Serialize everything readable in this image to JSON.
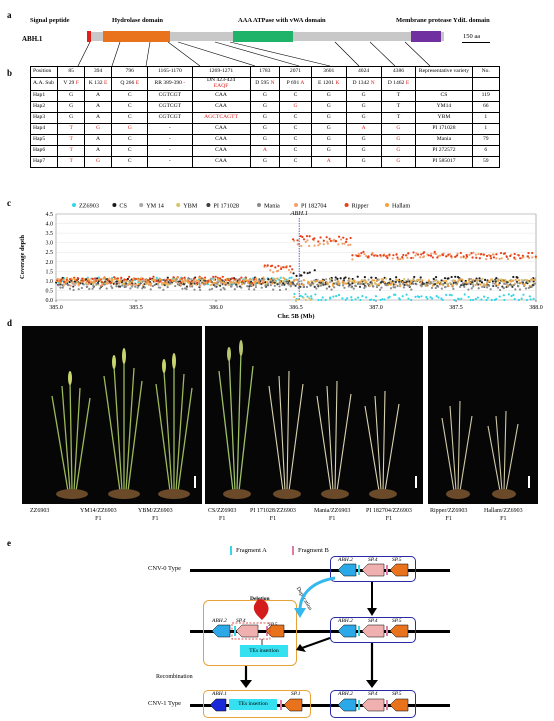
{
  "panels": {
    "a": "a",
    "b": "b",
    "c": "c",
    "d": "d",
    "e": "e"
  },
  "panel_a": {
    "gene": "ABH.1",
    "domains": [
      "Signal peptide",
      "Hydrolase domain",
      "AAA ATPase with vWA domain",
      "Membrane protease YdiL domain"
    ],
    "scale": "150 aa",
    "colors": {
      "signal": "#e0201b",
      "hydrolase": "#e8731c",
      "vwa": "#1fb36a",
      "ydil": "#7030a0",
      "backbone": "#c8c8c8"
    }
  },
  "panel_b": {
    "header1": [
      "Position",
      "85",
      "394",
      "796",
      "1165-1170",
      "1269-1271",
      "1783",
      "2071",
      "3601",
      "4024",
      "4386",
      "Representative variety",
      "No."
    ],
    "header2": [
      [
        {
          "t": "A.A. Sub"
        }
      ],
      [
        {
          "t": "V 29 "
        },
        {
          "t": "F",
          "r": 1
        }
      ],
      [
        {
          "t": "K 132 "
        },
        {
          "t": "E",
          "r": 1
        }
      ],
      [
        {
          "t": "Q 266 "
        },
        {
          "t": "E",
          "r": 1
        }
      ],
      [
        {
          "t": "RR 389-390 "
        },
        {
          "t": "-",
          "r": 1
        }
      ],
      [
        {
          "t": "DN 423-424 "
        },
        {
          "t": "EAQF",
          "r": 1
        }
      ],
      [
        {
          "t": "D 595 "
        },
        {
          "t": "N",
          "r": 1
        }
      ],
      [
        {
          "t": "P 691 "
        },
        {
          "t": "A",
          "r": 1
        }
      ],
      [
        {
          "t": "E 1201 "
        },
        {
          "t": "K",
          "r": 1
        }
      ],
      [
        {
          "t": "D 1342 "
        },
        {
          "t": "N",
          "r": 1
        }
      ],
      [
        {
          "t": "D 1462 "
        },
        {
          "t": "E",
          "r": 1
        }
      ],
      [
        {
          "t": ""
        }
      ],
      [
        {
          "t": ""
        }
      ]
    ],
    "rows": [
      [
        {
          "t": "Hap1"
        },
        {
          "t": "G"
        },
        {
          "t": "A"
        },
        {
          "t": "C"
        },
        {
          "t": "CGTCGT"
        },
        {
          "t": "CAA"
        },
        {
          "t": "G"
        },
        {
          "t": "C"
        },
        {
          "t": "G"
        },
        {
          "t": "G"
        },
        {
          "t": "T"
        },
        {
          "t": "CS"
        },
        {
          "t": "119"
        }
      ],
      [
        {
          "t": "Hap2"
        },
        {
          "t": "G"
        },
        {
          "t": "A"
        },
        {
          "t": "C"
        },
        {
          "t": "CGTCGT"
        },
        {
          "t": "CAA"
        },
        {
          "t": "G"
        },
        {
          "t": "G",
          "r": 1
        },
        {
          "t": "G"
        },
        {
          "t": "G"
        },
        {
          "t": "T"
        },
        {
          "t": "YM14"
        },
        {
          "t": "66"
        }
      ],
      [
        {
          "t": "Hap3"
        },
        {
          "t": "G"
        },
        {
          "t": "A"
        },
        {
          "t": "C"
        },
        {
          "t": "CGTCGT"
        },
        {
          "t": "AGCTCAGTT",
          "r": 1
        },
        {
          "t": "G"
        },
        {
          "t": "C"
        },
        {
          "t": "G"
        },
        {
          "t": "G"
        },
        {
          "t": "T"
        },
        {
          "t": "YBM"
        },
        {
          "t": "1"
        }
      ],
      [
        {
          "t": "Hap4"
        },
        {
          "t": "T",
          "r": 1
        },
        {
          "t": "G",
          "r": 1
        },
        {
          "t": "G",
          "r": 1
        },
        {
          "t": "-"
        },
        {
          "t": "CAA"
        },
        {
          "t": "G"
        },
        {
          "t": "C"
        },
        {
          "t": "G"
        },
        {
          "t": "A",
          "r": 1
        },
        {
          "t": "G",
          "r": 1
        },
        {
          "t": "PI 171028"
        },
        {
          "t": "1"
        }
      ],
      [
        {
          "t": "Hap5"
        },
        {
          "t": "T",
          "r": 1
        },
        {
          "t": "A"
        },
        {
          "t": "C"
        },
        {
          "t": "-"
        },
        {
          "t": "CAA"
        },
        {
          "t": "G"
        },
        {
          "t": "C"
        },
        {
          "t": "G"
        },
        {
          "t": "G"
        },
        {
          "t": "G",
          "r": 1
        },
        {
          "t": "Mania"
        },
        {
          "t": "79"
        }
      ],
      [
        {
          "t": "Hap6"
        },
        {
          "t": "T",
          "r": 1
        },
        {
          "t": "A"
        },
        {
          "t": "C"
        },
        {
          "t": "-"
        },
        {
          "t": "CAA"
        },
        {
          "t": "A",
          "r": 1
        },
        {
          "t": "C"
        },
        {
          "t": "G"
        },
        {
          "t": "G"
        },
        {
          "t": "G",
          "r": 1
        },
        {
          "t": "PI 272572"
        },
        {
          "t": "6"
        }
      ],
      [
        {
          "t": "Hap7"
        },
        {
          "t": "T",
          "r": 1
        },
        {
          "t": "G",
          "r": 1
        },
        {
          "t": "C"
        },
        {
          "t": "-"
        },
        {
          "t": "CAA"
        },
        {
          "t": "G"
        },
        {
          "t": "C"
        },
        {
          "t": "A",
          "r": 1
        },
        {
          "t": "G"
        },
        {
          "t": "G",
          "r": 1
        },
        {
          "t": "PI 585017"
        },
        {
          "t": "59"
        }
      ]
    ]
  },
  "chart_data": {
    "type": "scatter",
    "title": "",
    "xlabel": "Chr. 5B (Mb)",
    "ylabel": "Coverage depth",
    "xlim": [
      385.0,
      388.0
    ],
    "ylim": [
      0,
      4.5
    ],
    "xticks": [
      "385.0",
      "385.5",
      "386.0",
      "386.5",
      "387.0",
      "387.5",
      "388.0"
    ],
    "yticks": [
      "0.0",
      "0.5",
      "1.0",
      "1.5",
      "2.0",
      "2.5",
      "3.0",
      "3.5",
      "4.0",
      "4.5"
    ],
    "annotation": "ABH.1",
    "annotation_x": 386.52,
    "legend_position": "top",
    "series": [
      {
        "name": "ZZ6903",
        "color": "#35d6e8",
        "segments": [
          [
            385.0,
            386.48,
            1.0
          ],
          [
            386.48,
            386.58,
            0.2
          ],
          [
            386.58,
            388.0,
            0.12
          ]
        ]
      },
      {
        "name": "CS",
        "color": "#1a1a1a",
        "segments": [
          [
            385.0,
            386.48,
            1.0
          ],
          [
            386.48,
            386.62,
            1.4
          ],
          [
            386.62,
            388.0,
            1.05
          ]
        ]
      },
      {
        "name": "YM 14",
        "color": "#a8a8a8",
        "segments": [
          [
            385.0,
            386.48,
            0.95
          ],
          [
            386.48,
            388.0,
            0.95
          ]
        ]
      },
      {
        "name": "YBM",
        "color": "#d9c36a",
        "segments": [
          [
            385.0,
            386.48,
            0.95
          ],
          [
            386.48,
            386.6,
            0.05
          ],
          [
            386.6,
            388.0,
            0.95
          ]
        ]
      },
      {
        "name": "PI 171028",
        "color": "#3d3d3d",
        "segments": [
          [
            385.0,
            386.48,
            0.85
          ],
          [
            386.48,
            388.0,
            0.85
          ]
        ]
      },
      {
        "name": "Mania",
        "color": "#8a8a8a",
        "segments": [
          [
            385.0,
            386.48,
            0.7
          ],
          [
            386.48,
            388.0,
            0.7
          ]
        ]
      },
      {
        "name": "PI 182704",
        "color": "#f2a06a",
        "segments": [
          [
            385.0,
            386.3,
            0.9
          ],
          [
            386.3,
            386.48,
            1.6
          ],
          [
            386.48,
            386.85,
            3.0
          ],
          [
            386.85,
            388.0,
            2.3
          ]
        ]
      },
      {
        "name": "Ripper",
        "color": "#e8401c",
        "segments": [
          [
            385.0,
            386.3,
            1.05
          ],
          [
            386.3,
            386.48,
            1.7
          ],
          [
            386.48,
            386.85,
            3.2
          ],
          [
            386.85,
            388.0,
            2.35
          ]
        ]
      },
      {
        "name": "Hallam",
        "color": "#f5a23c",
        "segments": [
          [
            385.0,
            386.48,
            1.0
          ],
          [
            386.48,
            388.0,
            0.9
          ]
        ]
      }
    ]
  },
  "panel_d": {
    "captions": [
      {
        "l1": "ZZ6903",
        "l2": ""
      },
      {
        "l1": "YM14/ZZ6903",
        "l2": "F1"
      },
      {
        "l1": "YBM/ZZ6903",
        "l2": "F1"
      },
      {
        "l1": "CS/ZZ6903",
        "l2": "F1"
      },
      {
        "l1": "PI 171028/ZZ6903",
        "l2": "F1"
      },
      {
        "l1": "Mania/ZZ6903",
        "l2": "F1"
      },
      {
        "l1": "PI 182704/ZZ6903",
        "l2": "F1"
      },
      {
        "l1": "Ripper/ZZ6903",
        "l2": "F1"
      },
      {
        "l1": "Hallam/ZZ6903",
        "l2": "F1"
      }
    ]
  },
  "panel_e": {
    "legend_a": "Fragment A",
    "legend_b": "Fragment B",
    "cnv0": "CNV-0 Type",
    "cnv1": "CNV-1 Type",
    "abh2": "ABH.2",
    "sp4": "SP.4",
    "sp5": "SP.5",
    "abh1": "ABH.1",
    "sp1": "SP.1",
    "deletion": "Deletion",
    "duplication": "Duplication",
    "tes": "TEs insertion",
    "recombination": "Recombination"
  }
}
